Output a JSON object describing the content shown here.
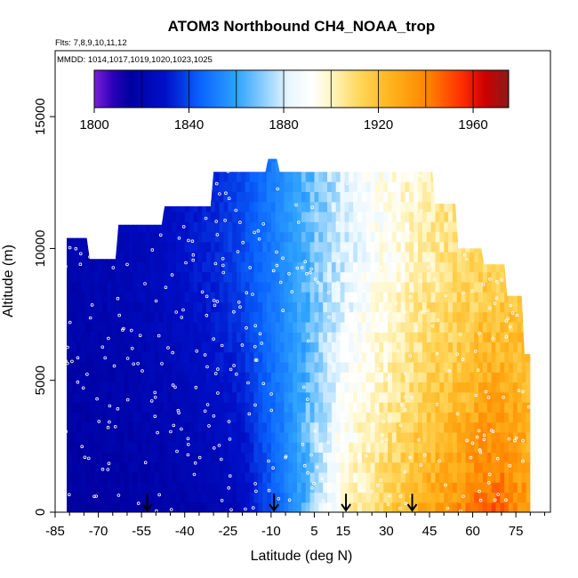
{
  "chart_data": {
    "type": "heatmap",
    "title": "ATOM3 Northbound CH4_NOAA_trop",
    "flights_label": "Flts: 7,8,9,10,11,12",
    "dates_label": "MMDD: 1014,1017,1019,1020,1023,1025",
    "xlabel": "Latitude (deg N)",
    "ylabel": "Altitude (m)",
    "xlim": [
      -85,
      87
    ],
    "ylim": [
      0,
      17500
    ],
    "x_ticks": [
      -85,
      -70,
      -55,
      -40,
      -25,
      -10,
      5,
      15,
      30,
      45,
      60,
      75
    ],
    "y_ticks": [
      0,
      5000,
      10000,
      15000
    ],
    "colorbar": {
      "range": [
        1800,
        1975
      ],
      "ticks": [
        1800,
        1840,
        1880,
        1920,
        1960
      ],
      "stops": [
        {
          "v": 1800,
          "color": "#7a1fd8"
        },
        {
          "v": 1808,
          "color": "#2a00b8"
        },
        {
          "v": 1815,
          "color": "#0000a0"
        },
        {
          "v": 1830,
          "color": "#0010c8"
        },
        {
          "v": 1845,
          "color": "#0a64ff"
        },
        {
          "v": 1860,
          "color": "#2ea2ff"
        },
        {
          "v": 1872,
          "color": "#8fd0ff"
        },
        {
          "v": 1882,
          "color": "#e8f6ff"
        },
        {
          "v": 1892,
          "color": "#ffffff"
        },
        {
          "v": 1900,
          "color": "#fff6c4"
        },
        {
          "v": 1912,
          "color": "#ffd65a"
        },
        {
          "v": 1925,
          "color": "#ffb41e"
        },
        {
          "v": 1940,
          "color": "#ff8800"
        },
        {
          "v": 1955,
          "color": "#ff3000"
        },
        {
          "v": 1965,
          "color": "#cc0000"
        },
        {
          "v": 1975,
          "color": "#8b1a1a"
        }
      ]
    },
    "ch4_profile": {
      "latitude": [
        -80,
        -70,
        -60,
        -50,
        -40,
        -30,
        -20,
        -12,
        -5,
        0,
        5,
        10,
        15,
        20,
        25,
        30,
        35,
        40,
        45,
        50,
        55,
        60,
        65,
        70,
        75,
        80
      ],
      "low_altitude_ppb": [
        1815,
        1815,
        1816,
        1817,
        1818,
        1820,
        1825,
        1838,
        1850,
        1860,
        1875,
        1888,
        1898,
        1905,
        1910,
        1915,
        1920,
        1926,
        1930,
        1934,
        1938,
        1944,
        1950,
        1947,
        1940,
        1936
      ],
      "high_altitude_ppb": [
        1820,
        1821,
        1823,
        1826,
        1830,
        1834,
        1840,
        1848,
        1856,
        1862,
        1868,
        1874,
        1880,
        1885,
        1890,
        1893,
        1896,
        1900,
        1904,
        1906,
        1908,
        1910,
        1912,
        1913,
        1914,
        1914
      ]
    },
    "coverage": {
      "altitude_top_m": [
        {
          "lat": -81,
          "alt": 10400
        },
        {
          "lat": -74,
          "alt": 10400
        },
        {
          "lat": -73,
          "alt": 9600
        },
        {
          "lat": -64,
          "alt": 9600
        },
        {
          "lat": -63,
          "alt": 10900
        },
        {
          "lat": -48,
          "alt": 10900
        },
        {
          "lat": -47,
          "alt": 11600
        },
        {
          "lat": -31,
          "alt": 11600
        },
        {
          "lat": -30,
          "alt": 12900
        },
        {
          "lat": -12,
          "alt": 12900
        },
        {
          "lat": -11,
          "alt": 13400
        },
        {
          "lat": -8,
          "alt": 13400
        },
        {
          "lat": -7,
          "alt": 12900
        },
        {
          "lat": 46,
          "alt": 12900
        },
        {
          "lat": 47,
          "alt": 11700
        },
        {
          "lat": 54,
          "alt": 11700
        },
        {
          "lat": 55,
          "alt": 10000
        },
        {
          "lat": 63,
          "alt": 10000
        },
        {
          "lat": 64,
          "alt": 9400
        },
        {
          "lat": 71,
          "alt": 9400
        },
        {
          "lat": 72,
          "alt": 8200
        },
        {
          "lat": 77,
          "alt": 8200
        },
        {
          "lat": 78,
          "alt": 6000
        },
        {
          "lat": 80,
          "alt": 6000
        }
      ],
      "south_edge_lat": -81,
      "north_edge_lat": 80
    },
    "arrows_lat": [
      -53,
      -9,
      16,
      39
    ]
  }
}
